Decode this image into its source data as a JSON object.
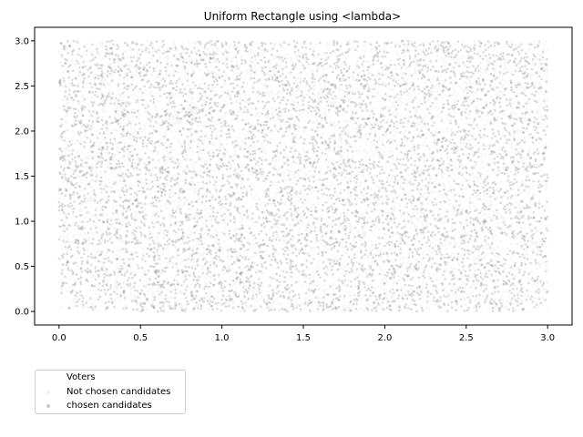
{
  "chart_data": {
    "type": "scatter",
    "title": "Uniform Rectangle using <lambda>",
    "xlabel": "",
    "ylabel": "",
    "xlim": [
      -0.15,
      3.15
    ],
    "ylim": [
      -0.15,
      3.15
    ],
    "x_ticks": [
      0.0,
      0.5,
      1.0,
      1.5,
      2.0,
      2.5,
      3.0
    ],
    "x_tick_labels": [
      "0.0",
      "0.5",
      "1.0",
      "1.5",
      "2.0",
      "2.5",
      "3.0"
    ],
    "y_ticks": [
      0.0,
      0.5,
      1.0,
      1.5,
      2.0,
      2.5,
      3.0
    ],
    "y_tick_labels": [
      "0.0",
      "0.5",
      "1.0",
      "1.5",
      "2.0",
      "2.5",
      "3.0"
    ],
    "grid": false,
    "legend_placement": "below-left",
    "distribution": {
      "shape": "uniform rectangle",
      "x_range": [
        0.0,
        3.0
      ],
      "y_range": [
        0.0,
        3.0
      ]
    },
    "series": [
      {
        "name": "Voters",
        "color": "#ffffff",
        "approx_points": 0
      },
      {
        "name": "Not chosen candidates",
        "color": "#f4f4f4",
        "approx_points": 6000
      },
      {
        "name": "chosen candidates",
        "color": "#808080",
        "approx_points": 6000
      }
    ]
  },
  "legend": {
    "items": [
      {
        "label": "Voters",
        "color": "#ffffff"
      },
      {
        "label": "Not chosen candidates",
        "color": "#f2f2f2"
      },
      {
        "label": "chosen candidates",
        "color": "#c8c8c8"
      }
    ]
  }
}
